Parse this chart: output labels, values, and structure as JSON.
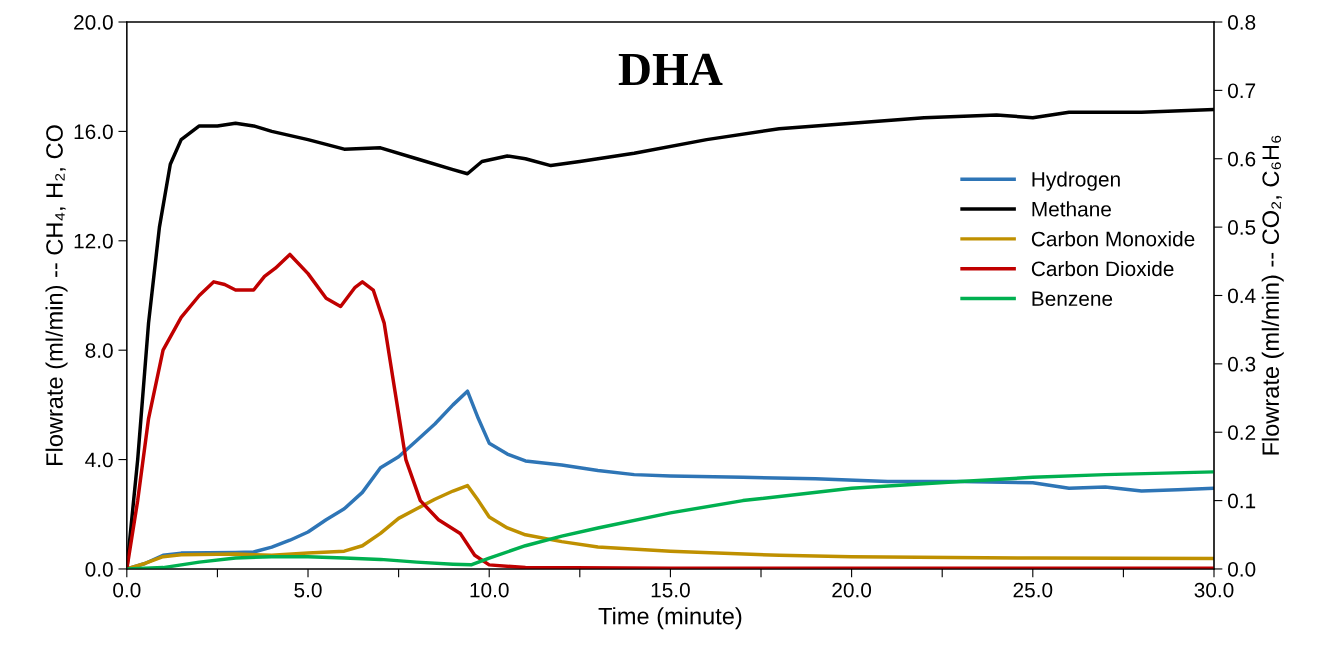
{
  "chart_data": {
    "type": "line",
    "title": "DHA",
    "xlabel": "Time (minute)",
    "ylabel": "Flowrate (ml/min) -- CH₄, H₂, CO",
    "y2label": "Flowrate (ml/min) -- CO₂, C₆H₆",
    "xlim": [
      0,
      30
    ],
    "ylim": [
      0,
      20
    ],
    "y2lim": [
      0,
      0.8
    ],
    "xticks": [
      {
        "value": 0,
        "label": "0.0"
      },
      {
        "value": 2.5,
        "label": null
      },
      {
        "value": 5,
        "label": "5.0"
      },
      {
        "value": 7.5,
        "label": null
      },
      {
        "value": 10,
        "label": "10.0"
      },
      {
        "value": 12.5,
        "label": null
      },
      {
        "value": 15,
        "label": "15.0"
      },
      {
        "value": 17.5,
        "label": null
      },
      {
        "value": 20,
        "label": "20.0"
      },
      {
        "value": 22.5,
        "label": null
      },
      {
        "value": 25,
        "label": "25.0"
      },
      {
        "value": 27.5,
        "label": null
      },
      {
        "value": 30,
        "label": "30.0"
      }
    ],
    "yticks": [
      {
        "value": 0,
        "label": "0.0"
      },
      {
        "value": 4,
        "label": "4.0"
      },
      {
        "value": 8,
        "label": "8.0"
      },
      {
        "value": 12,
        "label": "12.0"
      },
      {
        "value": 16,
        "label": "16.0"
      },
      {
        "value": 20,
        "label": "20.0"
      }
    ],
    "y2ticks": [
      {
        "value": 0,
        "label": "0.0"
      },
      {
        "value": 0.1,
        "label": "0.1"
      },
      {
        "value": 0.2,
        "label": "0.2"
      },
      {
        "value": 0.3,
        "label": "0.3"
      },
      {
        "value": 0.4,
        "label": "0.4"
      },
      {
        "value": 0.5,
        "label": "0.5"
      },
      {
        "value": 0.6,
        "label": "0.6"
      },
      {
        "value": 0.7,
        "label": "0.7"
      },
      {
        "value": 0.8,
        "label": "0.8"
      }
    ],
    "grid": false,
    "legend": "right",
    "marker": "none",
    "line_style": "solid",
    "series": [
      {
        "name": "Hydrogen",
        "color": "#2e75b6",
        "x": [
          0,
          0.5,
          1,
          1.5,
          3,
          3.5,
          4,
          4.5,
          5,
          5.5,
          6,
          6.5,
          7,
          7.5,
          8,
          8.5,
          9,
          9.4,
          9.7,
          10,
          10.5,
          11,
          12,
          13,
          14,
          15,
          17,
          19,
          21,
          23,
          25,
          26,
          27,
          28,
          29,
          30
        ],
        "values": [
          0,
          0.2,
          0.5,
          0.58,
          0.6,
          0.62,
          0.8,
          1.05,
          1.35,
          1.8,
          2.2,
          2.8,
          3.7,
          4.1,
          4.7,
          5.3,
          6.0,
          6.5,
          5.5,
          4.6,
          4.2,
          3.95,
          3.8,
          3.6,
          3.45,
          3.4,
          3.35,
          3.3,
          3.2,
          3.2,
          3.15,
          2.95,
          3.0,
          2.85,
          2.9,
          2.95
        ]
      },
      {
        "name": "Methane",
        "color": "#000000",
        "x": [
          0,
          0.3,
          0.6,
          0.9,
          1.2,
          1.5,
          2,
          2.5,
          3,
          3.5,
          4,
          5,
          6,
          7,
          8,
          9,
          9.4,
          9.8,
          10.5,
          11,
          11.7,
          12.5,
          14,
          16,
          18,
          20,
          22,
          24,
          25,
          26,
          28,
          30
        ],
        "values": [
          0,
          4,
          9,
          12.5,
          14.8,
          15.7,
          16.2,
          16.2,
          16.3,
          16.2,
          16.0,
          15.7,
          15.35,
          15.4,
          15.0,
          14.6,
          14.45,
          14.9,
          15.1,
          15.0,
          14.75,
          14.9,
          15.2,
          15.7,
          16.1,
          16.3,
          16.5,
          16.6,
          16.5,
          16.7,
          16.7,
          16.8
        ]
      },
      {
        "name": "Carbon Monoxide",
        "color": "#bf9000",
        "x": [
          0,
          0.5,
          1,
          1.5,
          3,
          4,
          5,
          6,
          6.5,
          7,
          7.5,
          8,
          8.5,
          9,
          9.4,
          9.7,
          10,
          10.5,
          11,
          12,
          13,
          15,
          18,
          20,
          25,
          30
        ],
        "values": [
          0,
          0.2,
          0.45,
          0.52,
          0.55,
          0.5,
          0.58,
          0.65,
          0.85,
          1.3,
          1.85,
          2.2,
          2.55,
          2.85,
          3.05,
          2.5,
          1.9,
          1.5,
          1.25,
          1.0,
          0.8,
          0.65,
          0.5,
          0.45,
          0.4,
          0.38
        ]
      },
      {
        "name": "Carbon Dioxide",
        "color": "#c00000",
        "axis": "y2",
        "x": [
          0,
          0.3,
          0.6,
          1.0,
          1.5,
          2.0,
          2.4,
          2.7,
          3.0,
          3.5,
          3.8,
          4.1,
          4.5,
          5.0,
          5.5,
          5.9,
          6.3,
          6.5,
          6.8,
          7.1,
          7.4,
          7.7,
          8.1,
          8.6,
          9.2,
          9.6,
          10.0,
          11,
          15,
          30
        ],
        "values": [
          0,
          0.1,
          0.22,
          0.32,
          0.368,
          0.4,
          0.42,
          0.416,
          0.408,
          0.408,
          0.428,
          0.44,
          0.46,
          0.432,
          0.396,
          0.384,
          0.412,
          0.42,
          0.408,
          0.36,
          0.26,
          0.16,
          0.1,
          0.072,
          0.052,
          0.02,
          0.006,
          0.002,
          0.001,
          0.001
        ]
      },
      {
        "name": "Benzene",
        "color": "#00b050",
        "axis": "y2",
        "x": [
          0,
          1,
          2,
          3,
          4,
          5,
          6,
          7,
          8,
          9,
          9.5,
          10,
          11,
          12,
          13,
          15,
          17,
          20,
          23,
          25,
          27,
          30
        ],
        "values": [
          0,
          0.002,
          0.01,
          0.016,
          0.018,
          0.018,
          0.016,
          0.014,
          0.01,
          0.007,
          0.006,
          0.016,
          0.034,
          0.048,
          0.06,
          0.082,
          0.1,
          0.118,
          0.128,
          0.134,
          0.138,
          0.142
        ]
      }
    ]
  }
}
